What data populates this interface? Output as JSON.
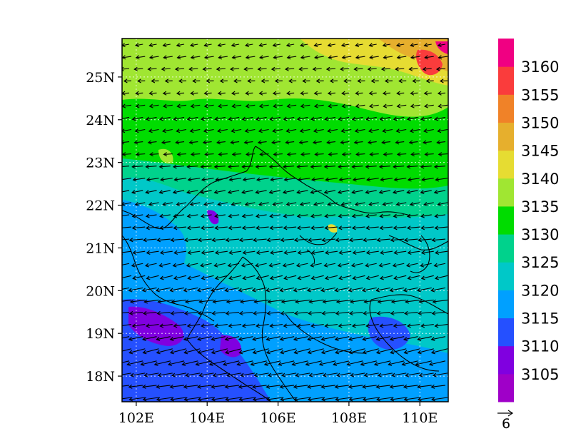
{
  "map": {
    "lon_range": [
      101.6,
      110.8
    ],
    "lat_range": [
      17.4,
      25.9
    ],
    "x_ticks": [
      {
        "value": 102,
        "label": "102E"
      },
      {
        "value": 104,
        "label": "104E"
      },
      {
        "value": 106,
        "label": "106E"
      },
      {
        "value": 108,
        "label": "108E"
      },
      {
        "value": 110,
        "label": "110E"
      }
    ],
    "y_ticks": [
      {
        "value": 18,
        "label": "18N"
      },
      {
        "value": 19,
        "label": "19N"
      },
      {
        "value": 20,
        "label": "20N"
      },
      {
        "value": 21,
        "label": "21N"
      },
      {
        "value": 22,
        "label": "22N"
      },
      {
        "value": 23,
        "label": "23N"
      },
      {
        "value": 24,
        "label": "24N"
      },
      {
        "value": 25,
        "label": "25N"
      }
    ],
    "gridlines": "dotted",
    "vector_reference": {
      "label": "6"
    }
  },
  "colorbar": {
    "colors": [
      "#9f00c8",
      "#8000e0",
      "#2550ff",
      "#00a0ff",
      "#00c8c8",
      "#00d28c",
      "#00dc00",
      "#a0e632",
      "#e6dc32",
      "#e6af2d",
      "#f08228",
      "#fa3c3c",
      "#f00082"
    ],
    "labels": [
      "3105",
      "3110",
      "3115",
      "3120",
      "3125",
      "3130",
      "3135",
      "3140",
      "3145",
      "3150",
      "3155",
      "3160"
    ]
  }
}
